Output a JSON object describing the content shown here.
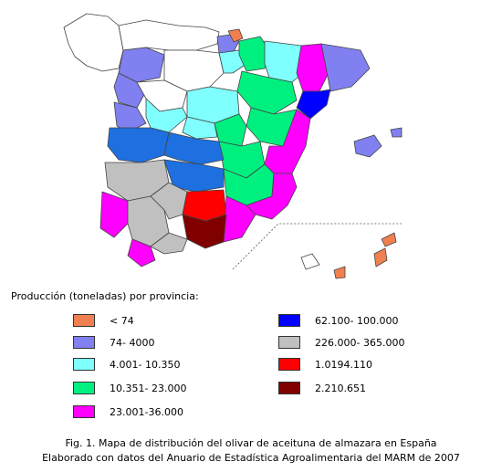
{
  "legend": {
    "title": "Producción (toneladas) por provincia:",
    "items": [
      {
        "label": "< 74",
        "color": "#f08050"
      },
      {
        "label": "74- 4000",
        "color": "#8080f0"
      },
      {
        "label": "4.001- 10.350",
        "color": "#80ffff"
      },
      {
        "label": "10.351- 23.000",
        "color": "#00f080"
      },
      {
        "label": "23.001-36.000",
        "color": "#ff00ff"
      },
      {
        "label": "62.100- 100.000",
        "color": "#0000ff"
      },
      {
        "label": "226.000- 365.000",
        "color": "#c0c0c0"
      },
      {
        "label": "1.0194.110",
        "color": "#ff0000"
      },
      {
        "label": "2.210.651",
        "color": "#800000"
      }
    ]
  },
  "caption": {
    "line1": "Fig. 1. Mapa de distribución del olivar de aceituna de almazara en España",
    "line2": "Elaborado con datos del Anuario de Estadística Agroalimentaria del MARM de 2007"
  }
}
